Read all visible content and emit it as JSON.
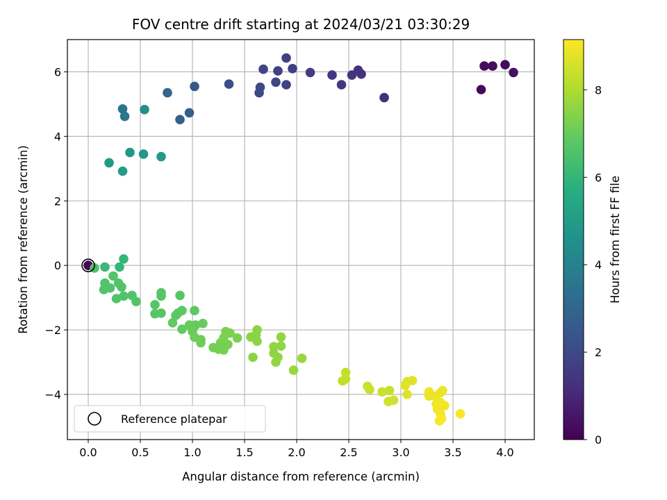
{
  "chart_data": {
    "type": "scatter",
    "title": "FOV centre drift starting at 2024/03/21 03:30:29",
    "xlabel": "Angular distance from reference (arcmin)",
    "ylabel": "Rotation from reference (arcmin)",
    "xlim": [
      -0.2,
      4.28
    ],
    "ylim": [
      -5.4,
      7.0
    ],
    "xticks": [
      "0.0",
      "0.5",
      "1.0",
      "1.5",
      "2.0",
      "2.5",
      "3.0",
      "3.5",
      "4.0"
    ],
    "yticks": [
      "−4",
      "−2",
      "0",
      "2",
      "4",
      "6"
    ],
    "grid": true,
    "legend": {
      "placement": "lower-left",
      "label": "Reference platepar"
    },
    "colorbar": {
      "label": "Hours from first FF file",
      "range": [
        0,
        9.15
      ],
      "ticks": [
        "0",
        "2",
        "4",
        "6",
        "8"
      ],
      "colormap": "viridis"
    },
    "reference_point": {
      "x": 0.0,
      "y": 0.0
    },
    "points": [
      {
        "x": 0.0,
        "y": 0.0,
        "t": 0.1
      },
      {
        "x": 3.77,
        "y": 5.45,
        "t": 0.2
      },
      {
        "x": 3.8,
        "y": 6.18,
        "t": 0.3
      },
      {
        "x": 3.88,
        "y": 6.18,
        "t": 0.35
      },
      {
        "x": 4.0,
        "y": 6.22,
        "t": 0.3
      },
      {
        "x": 4.08,
        "y": 5.98,
        "t": 0.4
      },
      {
        "x": 2.84,
        "y": 5.2,
        "t": 1.2
      },
      {
        "x": 2.62,
        "y": 5.93,
        "t": 1.3
      },
      {
        "x": 2.59,
        "y": 6.05,
        "t": 1.3
      },
      {
        "x": 2.53,
        "y": 5.9,
        "t": 1.4
      },
      {
        "x": 2.43,
        "y": 5.6,
        "t": 1.4
      },
      {
        "x": 2.34,
        "y": 5.9,
        "t": 1.5
      },
      {
        "x": 2.13,
        "y": 5.98,
        "t": 1.6
      },
      {
        "x": 1.96,
        "y": 6.1,
        "t": 1.7
      },
      {
        "x": 1.9,
        "y": 6.43,
        "t": 1.7
      },
      {
        "x": 1.9,
        "y": 5.6,
        "t": 1.8
      },
      {
        "x": 1.82,
        "y": 6.03,
        "t": 1.8
      },
      {
        "x": 1.8,
        "y": 5.68,
        "t": 1.9
      },
      {
        "x": 1.68,
        "y": 6.08,
        "t": 1.9
      },
      {
        "x": 1.65,
        "y": 5.52,
        "t": 2.0
      },
      {
        "x": 1.64,
        "y": 5.35,
        "t": 2.0
      },
      {
        "x": 1.35,
        "y": 5.62,
        "t": 2.2
      },
      {
        "x": 1.02,
        "y": 5.55,
        "t": 2.5
      },
      {
        "x": 0.97,
        "y": 4.73,
        "t": 2.7
      },
      {
        "x": 0.88,
        "y": 4.52,
        "t": 2.8
      },
      {
        "x": 0.76,
        "y": 5.35,
        "t": 3.0
      },
      {
        "x": 0.33,
        "y": 4.85,
        "t": 3.5
      },
      {
        "x": 0.35,
        "y": 4.62,
        "t": 3.6
      },
      {
        "x": 0.54,
        "y": 4.83,
        "t": 4.5
      },
      {
        "x": 0.4,
        "y": 3.5,
        "t": 4.8
      },
      {
        "x": 0.53,
        "y": 3.45,
        "t": 4.8
      },
      {
        "x": 0.7,
        "y": 3.37,
        "t": 4.9
      },
      {
        "x": 0.2,
        "y": 3.18,
        "t": 4.9
      },
      {
        "x": 0.33,
        "y": 2.92,
        "t": 5.0
      },
      {
        "x": 0.34,
        "y": 0.2,
        "t": 6.0
      },
      {
        "x": 0.3,
        "y": -0.05,
        "t": 6.0
      },
      {
        "x": 0.16,
        "y": -0.05,
        "t": 6.1
      },
      {
        "x": 0.06,
        "y": -0.08,
        "t": 6.5
      },
      {
        "x": 0.24,
        "y": -0.33,
        "t": 6.6
      },
      {
        "x": 0.16,
        "y": -0.55,
        "t": 6.6
      },
      {
        "x": 0.29,
        "y": -0.55,
        "t": 6.6
      },
      {
        "x": 0.21,
        "y": -0.7,
        "t": 6.6
      },
      {
        "x": 0.32,
        "y": -0.67,
        "t": 6.6
      },
      {
        "x": 0.15,
        "y": -0.75,
        "t": 6.6
      },
      {
        "x": 0.34,
        "y": -0.95,
        "t": 6.6
      },
      {
        "x": 0.42,
        "y": -0.93,
        "t": 6.6
      },
      {
        "x": 0.27,
        "y": -1.03,
        "t": 6.6
      },
      {
        "x": 0.46,
        "y": -1.12,
        "t": 6.6
      },
      {
        "x": 0.7,
        "y": -0.85,
        "t": 6.7
      },
      {
        "x": 0.7,
        "y": -0.95,
        "t": 6.7
      },
      {
        "x": 0.88,
        "y": -0.93,
        "t": 6.7
      },
      {
        "x": 0.64,
        "y": -1.22,
        "t": 6.7
      },
      {
        "x": 0.64,
        "y": -1.5,
        "t": 6.7
      },
      {
        "x": 0.7,
        "y": -1.48,
        "t": 6.7
      },
      {
        "x": 0.9,
        "y": -1.4,
        "t": 6.8
      },
      {
        "x": 0.86,
        "y": -1.48,
        "t": 6.8
      },
      {
        "x": 0.84,
        "y": -1.55,
        "t": 6.8
      },
      {
        "x": 1.02,
        "y": -1.4,
        "t": 6.8
      },
      {
        "x": 0.81,
        "y": -1.78,
        "t": 6.9
      },
      {
        "x": 0.9,
        "y": -1.98,
        "t": 6.9
      },
      {
        "x": 0.97,
        "y": -1.85,
        "t": 7.0
      },
      {
        "x": 1.03,
        "y": -1.85,
        "t": 7.0
      },
      {
        "x": 1.1,
        "y": -1.8,
        "t": 7.0
      },
      {
        "x": 1.0,
        "y": -2.05,
        "t": 7.0
      },
      {
        "x": 1.02,
        "y": -2.23,
        "t": 7.1
      },
      {
        "x": 1.08,
        "y": -2.3,
        "t": 7.1
      },
      {
        "x": 1.08,
        "y": -2.4,
        "t": 7.1
      },
      {
        "x": 1.2,
        "y": -2.55,
        "t": 7.2
      },
      {
        "x": 1.27,
        "y": -2.4,
        "t": 7.2
      },
      {
        "x": 1.3,
        "y": -2.62,
        "t": 7.2
      },
      {
        "x": 1.25,
        "y": -2.6,
        "t": 7.2
      },
      {
        "x": 1.34,
        "y": -2.45,
        "t": 7.2
      },
      {
        "x": 1.32,
        "y": -2.05,
        "t": 7.3
      },
      {
        "x": 1.36,
        "y": -2.1,
        "t": 7.3
      },
      {
        "x": 1.3,
        "y": -2.25,
        "t": 7.3
      },
      {
        "x": 1.43,
        "y": -2.25,
        "t": 7.3
      },
      {
        "x": 1.56,
        "y": -2.22,
        "t": 7.5
      },
      {
        "x": 1.62,
        "y": -2.0,
        "t": 7.5
      },
      {
        "x": 1.61,
        "y": -2.15,
        "t": 7.5
      },
      {
        "x": 1.62,
        "y": -2.35,
        "t": 7.5
      },
      {
        "x": 1.58,
        "y": -2.85,
        "t": 7.5
      },
      {
        "x": 1.78,
        "y": -2.52,
        "t": 7.6
      },
      {
        "x": 1.85,
        "y": -2.5,
        "t": 7.6
      },
      {
        "x": 1.85,
        "y": -2.22,
        "t": 7.6
      },
      {
        "x": 1.78,
        "y": -2.72,
        "t": 7.6
      },
      {
        "x": 1.82,
        "y": -2.85,
        "t": 7.6
      },
      {
        "x": 1.8,
        "y": -3.0,
        "t": 7.6
      },
      {
        "x": 2.05,
        "y": -2.88,
        "t": 7.7
      },
      {
        "x": 1.97,
        "y": -3.25,
        "t": 7.7
      },
      {
        "x": 2.47,
        "y": -3.32,
        "t": 8.3
      },
      {
        "x": 2.47,
        "y": -3.52,
        "t": 8.3
      },
      {
        "x": 2.44,
        "y": -3.58,
        "t": 8.3
      },
      {
        "x": 2.68,
        "y": -3.75,
        "t": 8.4
      },
      {
        "x": 2.7,
        "y": -3.85,
        "t": 8.4
      },
      {
        "x": 2.82,
        "y": -3.92,
        "t": 8.4
      },
      {
        "x": 2.89,
        "y": -3.88,
        "t": 8.4
      },
      {
        "x": 2.88,
        "y": -4.22,
        "t": 8.5
      },
      {
        "x": 2.93,
        "y": -4.18,
        "t": 8.5
      },
      {
        "x": 3.04,
        "y": -3.72,
        "t": 8.7
      },
      {
        "x": 3.06,
        "y": -3.6,
        "t": 8.7
      },
      {
        "x": 3.11,
        "y": -3.57,
        "t": 8.7
      },
      {
        "x": 3.06,
        "y": -4.0,
        "t": 8.7
      },
      {
        "x": 3.27,
        "y": -3.92,
        "t": 8.9
      },
      {
        "x": 3.27,
        "y": -4.05,
        "t": 8.9
      },
      {
        "x": 3.33,
        "y": -4.05,
        "t": 8.9
      },
      {
        "x": 3.38,
        "y": -3.95,
        "t": 8.9
      },
      {
        "x": 3.4,
        "y": -3.88,
        "t": 8.9
      },
      {
        "x": 3.34,
        "y": -4.3,
        "t": 9.0
      },
      {
        "x": 3.38,
        "y": -4.25,
        "t": 9.0
      },
      {
        "x": 3.35,
        "y": -4.45,
        "t": 9.0
      },
      {
        "x": 3.42,
        "y": -4.35,
        "t": 9.0
      },
      {
        "x": 3.38,
        "y": -4.6,
        "t": 9.0
      },
      {
        "x": 3.37,
        "y": -4.82,
        "t": 9.1
      },
      {
        "x": 3.39,
        "y": -4.75,
        "t": 9.1
      },
      {
        "x": 3.57,
        "y": -4.6,
        "t": 9.1
      }
    ]
  }
}
